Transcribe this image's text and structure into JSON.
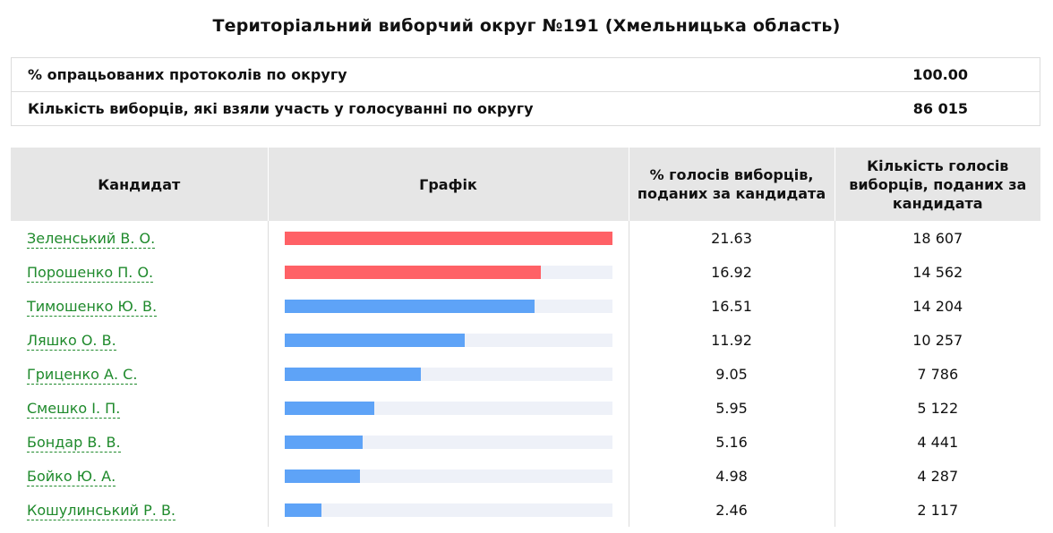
{
  "title": "Територіальний виборчий округ №191 (Хмельницька область)",
  "summary": [
    {
      "label": "% опрацьованих протоколів по округу",
      "value": "100.00"
    },
    {
      "label": "Кількість виборців, які взяли участь у голосуванні по округу",
      "value": "86 015"
    }
  ],
  "table": {
    "headers": {
      "candidate": "Кандидат",
      "graph": "Графік",
      "percent": "% голосів виборців, поданих за кандидата",
      "count": "Кількість голосів виборців, поданих за кандидата"
    },
    "rows": [
      {
        "name": "Зеленський В. О.",
        "percent": "21.63",
        "count": "18 607",
        "bar_fraction": 1.0,
        "bar_color": "#ff6166"
      },
      {
        "name": "Порошенко П. О.",
        "percent": "16.92",
        "count": "14 562",
        "bar_fraction": 0.782,
        "bar_color": "#ff6166"
      },
      {
        "name": "Тимошенко Ю. В.",
        "percent": "16.51",
        "count": "14 204",
        "bar_fraction": 0.763,
        "bar_color": "#5ea3f7"
      },
      {
        "name": "Ляшко О. В.",
        "percent": "11.92",
        "count": "10 257",
        "bar_fraction": 0.551,
        "bar_color": "#5ea3f7"
      },
      {
        "name": "Гриценко А. С.",
        "percent": "9.05",
        "count": "7 786",
        "bar_fraction": 0.418,
        "bar_color": "#5ea3f7"
      },
      {
        "name": "Смешко І. П.",
        "percent": "5.95",
        "count": "5 122",
        "bar_fraction": 0.275,
        "bar_color": "#5ea3f7"
      },
      {
        "name": "Бондар В. В.",
        "percent": "5.16",
        "count": "4 441",
        "bar_fraction": 0.239,
        "bar_color": "#5ea3f7"
      },
      {
        "name": "Бойко Ю. А.",
        "percent": "4.98",
        "count": "4 287",
        "bar_fraction": 0.23,
        "bar_color": "#5ea3f7"
      },
      {
        "name": "Кошулинський Р. В.",
        "percent": "2.46",
        "count": "2 117",
        "bar_fraction": 0.114,
        "bar_color": "#5ea3f7"
      }
    ]
  },
  "colors": {
    "link": "#1f8a2c",
    "header_bg": "#e6e6e6",
    "bar_track": "#eef1f8"
  }
}
